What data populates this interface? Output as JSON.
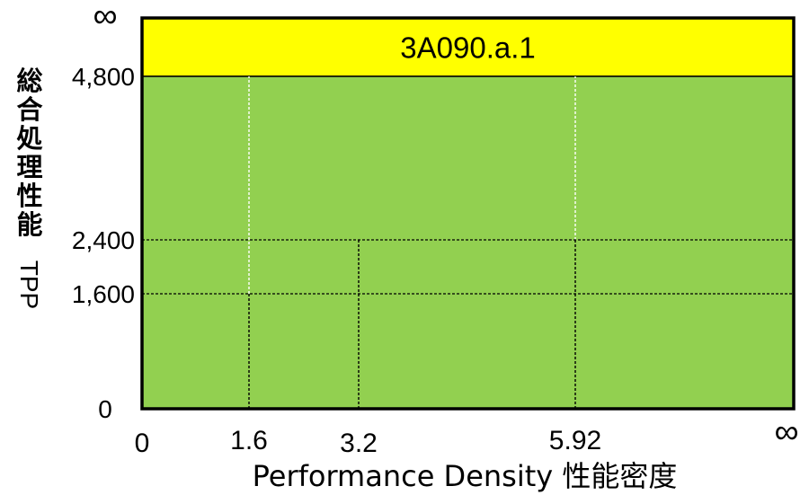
{
  "chart_data": {
    "type": "heatmap",
    "title": "",
    "xlabel": "Performance Density  性能密度",
    "ylabel_cjk": [
      "総",
      "合",
      "処",
      "理",
      "性",
      "能"
    ],
    "ylabel_latin": "TPP",
    "x_ticks": [
      {
        "value": 0,
        "label": "0"
      },
      {
        "value": 1.6,
        "label": "1.6"
      },
      {
        "value": 3.2,
        "label": "3.2"
      },
      {
        "value": 5.92,
        "label": "5.92"
      },
      {
        "value": "inf",
        "label": "∞"
      }
    ],
    "y_ticks": [
      {
        "value": 0,
        "label": "0"
      },
      {
        "value": 1600,
        "label": "1,600"
      },
      {
        "value": 2400,
        "label": "2,400"
      },
      {
        "value": 4800,
        "label": "4,800"
      },
      {
        "value": "inf",
        "label": "∞"
      }
    ],
    "regions": [
      {
        "name": "3A090.a.1",
        "label": "3A090.a.1",
        "x_range": [
          0,
          "inf"
        ],
        "y_range": [
          4800,
          "inf"
        ],
        "color": "#ffff00"
      },
      {
        "name": "",
        "label": "",
        "x_range": [
          0,
          "inf"
        ],
        "y_range": [
          0,
          4800
        ],
        "color": "#92d050"
      }
    ],
    "dashed_lines": {
      "vertical": [
        {
          "x": 1.6,
          "y_range": [
            0,
            4800
          ],
          "color": "#ffffff",
          "segment_colors": [
            {
              "y_range": [
                0,
                1600
              ],
              "color": "#000000"
            },
            {
              "y_range": [
                1600,
                4800
              ],
              "color": "#ffffff"
            }
          ]
        },
        {
          "x": 3.2,
          "y_range": [
            0,
            2400
          ],
          "color": "#000000"
        },
        {
          "x": 5.92,
          "y_range": [
            0,
            4800
          ],
          "color": "#000000",
          "segment_colors": [
            {
              "y_range": [
                0,
                2400
              ],
              "color": "#000000"
            },
            {
              "y_range": [
                2400,
                4800
              ],
              "color": "#ffffff"
            }
          ]
        }
      ],
      "horizontal": [
        {
          "y": 1600,
          "x_range": [
            0,
            "inf"
          ],
          "color": "#000000"
        },
        {
          "y": 2400,
          "x_range": [
            0,
            "inf"
          ],
          "color": "#000000"
        }
      ]
    },
    "grid": false,
    "legend": "none"
  },
  "colors": {
    "frame": "#000000",
    "green_region": "#92d050",
    "yellow_region": "#ffff00"
  }
}
